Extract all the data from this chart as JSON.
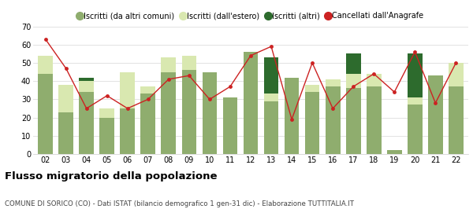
{
  "years": [
    "02",
    "03",
    "04",
    "05",
    "06",
    "07",
    "08",
    "09",
    "10",
    "11",
    "12",
    "13",
    "14",
    "15",
    "16",
    "17",
    "18",
    "19",
    "20",
    "21",
    "22"
  ],
  "iscritti_comuni": [
    44,
    23,
    34,
    20,
    25,
    33,
    45,
    46,
    45,
    31,
    56,
    29,
    42,
    34,
    37,
    36,
    37,
    2,
    27,
    43,
    37
  ],
  "iscritti_estero": [
    10,
    15,
    6,
    5,
    20,
    4,
    8,
    8,
    0,
    0,
    0,
    4,
    0,
    4,
    4,
    8,
    7,
    0,
    4,
    0,
    13
  ],
  "iscritti_altri": [
    0,
    0,
    2,
    0,
    0,
    0,
    0,
    0,
    0,
    0,
    0,
    20,
    0,
    0,
    0,
    11,
    0,
    0,
    24,
    0,
    0
  ],
  "cancellati": [
    63,
    47,
    25,
    32,
    25,
    30,
    41,
    43,
    30,
    37,
    54,
    59,
    19,
    50,
    25,
    37,
    44,
    34,
    56,
    28,
    50
  ],
  "color_comuni": "#8fad6e",
  "color_estero": "#d9e8b0",
  "color_altri": "#2d6b2d",
  "color_cancellati": "#cc2222",
  "title": "Flusso migratorio della popolazione",
  "subtitle": "COMUNE DI SORICO (CO) - Dati ISTAT (bilancio demografico 1 gen-31 dic) - Elaborazione TUTTITALIA.IT",
  "legend_labels": [
    "Iscritti (da altri comuni)",
    "Iscritti (dall'estero)",
    "Iscritti (altri)",
    "Cancellati dall'Anagrafe"
  ],
  "ylim": [
    0,
    70
  ],
  "yticks": [
    0,
    10,
    20,
    30,
    40,
    50,
    60,
    70
  ],
  "grid_color": "#dddddd",
  "bg_color": "#ffffff"
}
